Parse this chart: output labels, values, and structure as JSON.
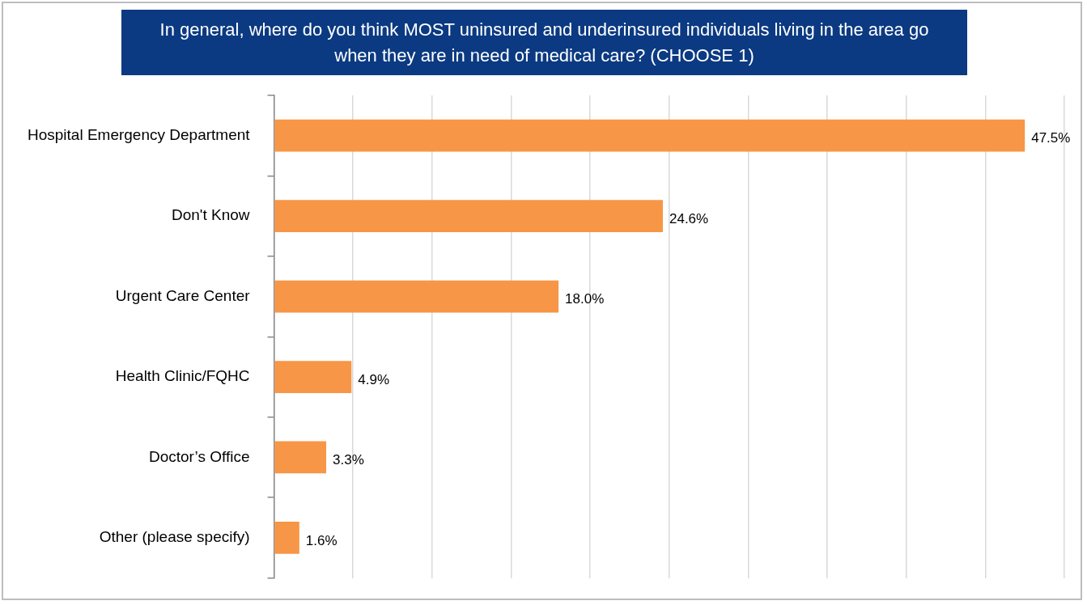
{
  "chart_data": {
    "type": "bar",
    "orientation": "horizontal",
    "title": "In general, where do you think MOST uninsured and underinsured individuals living in the area go when they are in need of medical care? (CHOOSE 1)",
    "categories": [
      "Hospital Emergency Department",
      "Don't Know",
      "Urgent Care Center",
      "Health Clinic/FQHC",
      "Doctor’s Office",
      "Other (please specify)"
    ],
    "values": [
      47.5,
      24.6,
      18.0,
      4.9,
      3.3,
      1.6
    ],
    "value_labels": [
      "47.5%",
      "24.6%",
      "18.0%",
      "4.9%",
      "3.3%",
      "1.6%"
    ],
    "color": "#f79646",
    "xlim": [
      0,
      50
    ],
    "xticks": [
      {
        "value": 0,
        "label": null
      },
      {
        "value": 5,
        "label": null
      },
      {
        "value": 10,
        "label": null
      },
      {
        "value": 15,
        "label": null
      },
      {
        "value": 20,
        "label": null
      },
      {
        "value": 25,
        "label": null
      },
      {
        "value": 30,
        "label": null
      },
      {
        "value": 35,
        "label": null
      },
      {
        "value": 40,
        "label": null
      },
      {
        "value": 45,
        "label": null
      },
      {
        "value": 50,
        "label": null
      }
    ],
    "tick_labels": "y",
    "grid": "x",
    "legend": false
  }
}
